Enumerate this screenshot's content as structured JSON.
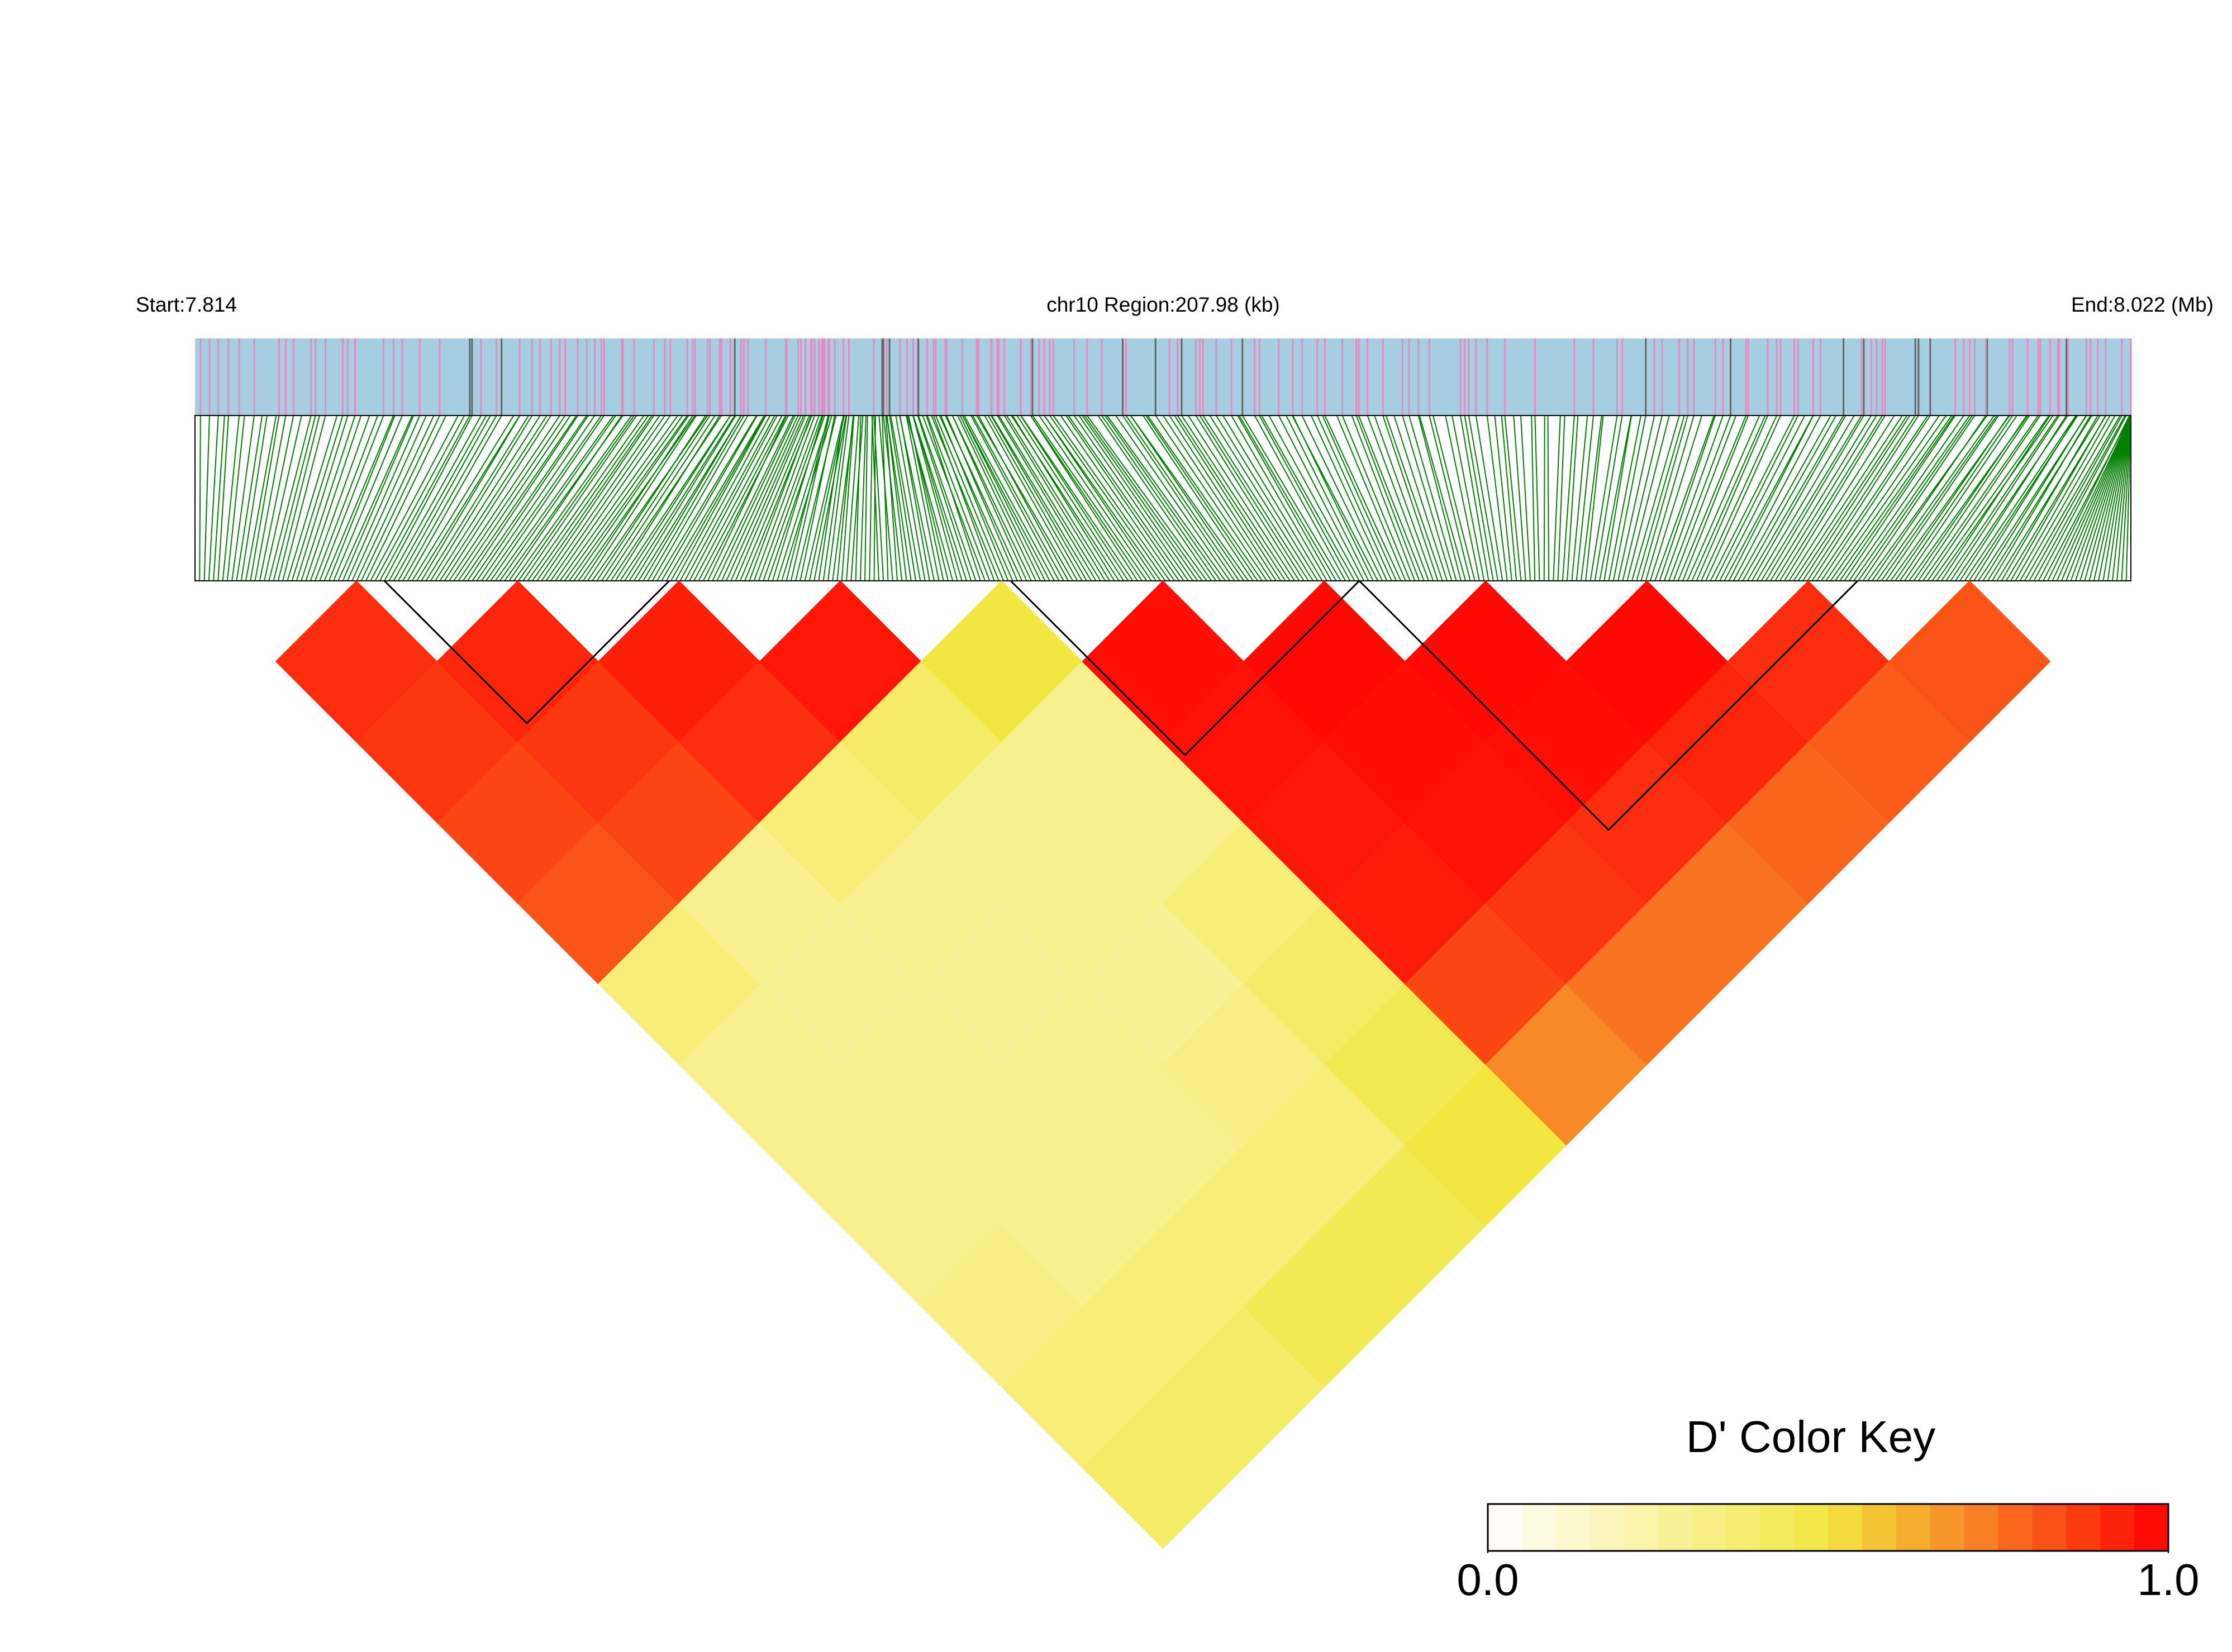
{
  "chart_data": {
    "type": "ld_heatmap",
    "start_label": "Start:7.814",
    "title": "chr10 Region:207.98 (kb)",
    "end_label": "End:8.022 (Mb)",
    "values": [
      [
        0.9,
        0.88,
        0.85,
        0.82,
        0.35,
        0.3,
        0.3,
        0.3,
        0.32,
        0.35,
        0.4
      ],
      [
        0.92,
        0.88,
        0.85,
        0.3,
        0.28,
        0.3,
        0.3,
        0.3,
        0.35,
        0.4
      ],
      [
        0.93,
        0.9,
        0.35,
        0.3,
        0.28,
        0.3,
        0.3,
        0.35,
        0.45
      ],
      [
        0.95,
        0.4,
        0.3,
        0.3,
        0.28,
        0.32,
        0.35,
        0.45
      ],
      [
        0.5,
        0.3,
        0.3,
        0.35,
        0.4,
        0.45,
        0.5
      ],
      [
        0.97,
        0.96,
        0.95,
        0.94,
        0.85,
        0.7
      ],
      [
        0.98,
        0.97,
        0.96,
        0.88,
        0.75
      ],
      [
        0.98,
        0.97,
        0.9,
        0.75
      ],
      [
        0.98,
        0.92,
        0.78
      ],
      [
        0.9,
        0.8
      ],
      [
        0.82
      ]
    ],
    "colorbar": {
      "title": "D' Color Key",
      "lim": [
        0,
        1
      ],
      "ticks": [
        {
          "value": 0,
          "label": "0.0"
        },
        {
          "value": 1,
          "label": "1.0"
        }
      ],
      "colors": [
        "#ffffff",
        "#f2e640",
        "#ff0000"
      ],
      "steps": 20
    }
  }
}
